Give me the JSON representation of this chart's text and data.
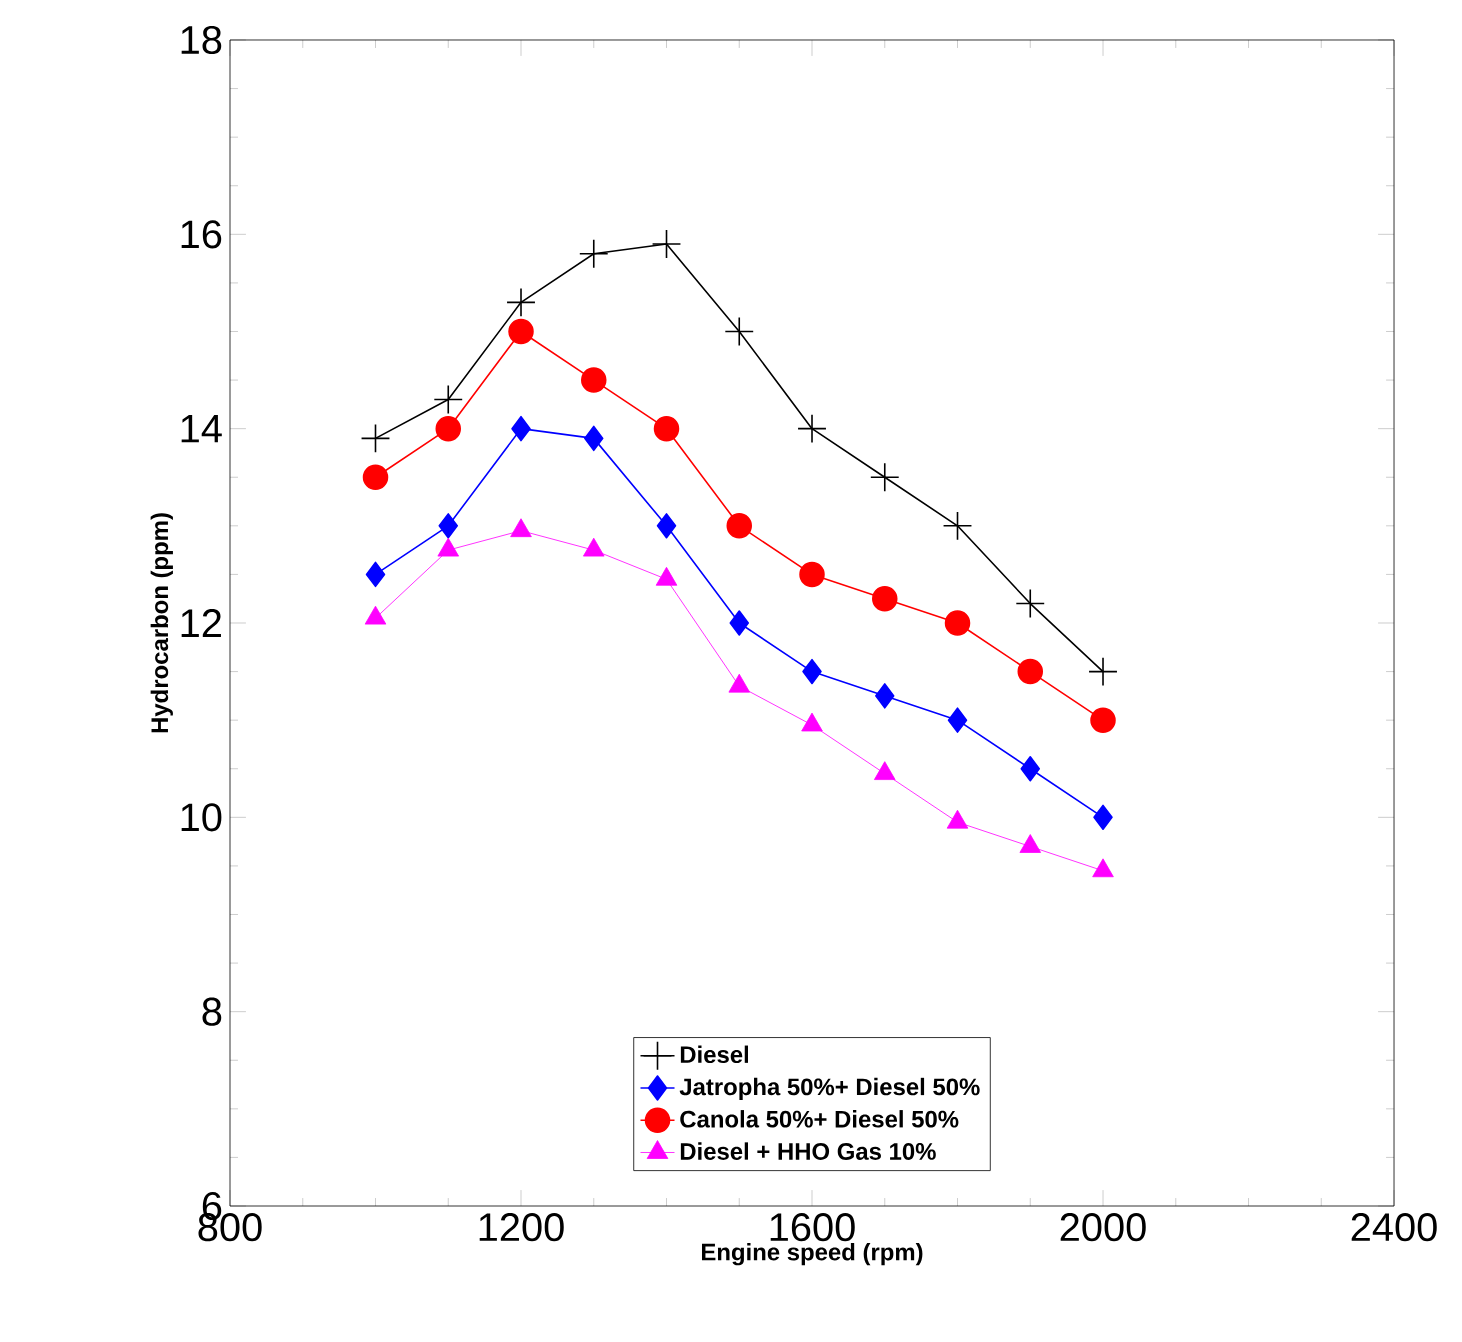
{
  "chart_data": {
    "type": "line",
    "xlabel": "Engine speed (rpm)",
    "ylabel": "Hydrocarbon (ppm)",
    "x": [
      1000,
      1100,
      1200,
      1300,
      1400,
      1500,
      1600,
      1700,
      1800,
      1900,
      2000
    ],
    "series": [
      {
        "name": "Diesel",
        "color": "#000000",
        "marker": "cross",
        "values": [
          13.9,
          14.3,
          15.3,
          15.8,
          15.9,
          15.0,
          14.0,
          13.5,
          13.0,
          12.2,
          11.5
        ]
      },
      {
        "name": "Jatropha 50%+ Diesel 50%",
        "color": "#0000ff",
        "marker": "diamond",
        "values": [
          12.5,
          13.0,
          14.0,
          13.9,
          13.0,
          12.0,
          11.5,
          11.25,
          11.0,
          10.5,
          10.0
        ]
      },
      {
        "name": "Canola 50%+ Diesel 50%",
        "color": "#ff0000",
        "marker": "circle",
        "values": [
          13.5,
          14.0,
          15.0,
          14.5,
          14.0,
          13.0,
          12.5,
          12.25,
          12.0,
          11.5,
          11.0
        ]
      },
      {
        "name": "Diesel + HHO Gas 10%",
        "color": "#ff00ff",
        "marker": "triangle",
        "values": [
          12.05,
          12.75,
          12.95,
          12.75,
          12.45,
          11.35,
          10.95,
          10.45,
          9.95,
          9.7,
          9.45
        ]
      }
    ],
    "xlim": [
      800,
      2400
    ],
    "xticks": [
      800,
      1200,
      1600,
      2000,
      2400
    ],
    "ylim": [
      6,
      18
    ],
    "yticks": [
      6,
      8,
      10,
      12,
      14,
      16,
      18
    ],
    "grid": false,
    "legend": "bottom",
    "line_style": "solid"
  }
}
